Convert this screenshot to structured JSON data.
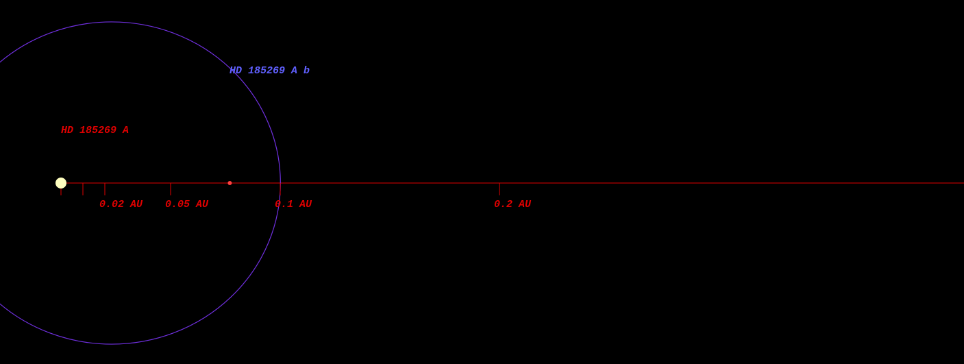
{
  "star": {
    "name": "HD 185269 A"
  },
  "planet": {
    "name": "HD 185269 A b",
    "semi_major_axis": 0.077,
    "eccentricity": 0.3
  },
  "scale": {
    "minor_ticks": [
      0,
      0.01
    ],
    "ticks": [
      {
        "value": 0.02,
        "label": "0.02 AU"
      },
      {
        "value": 0.05,
        "label": "0.05 AU"
      },
      {
        "value": 0.1,
        "label": "0.1 AU"
      },
      {
        "value": 0.2,
        "label": "0.2 AU"
      }
    ]
  }
}
